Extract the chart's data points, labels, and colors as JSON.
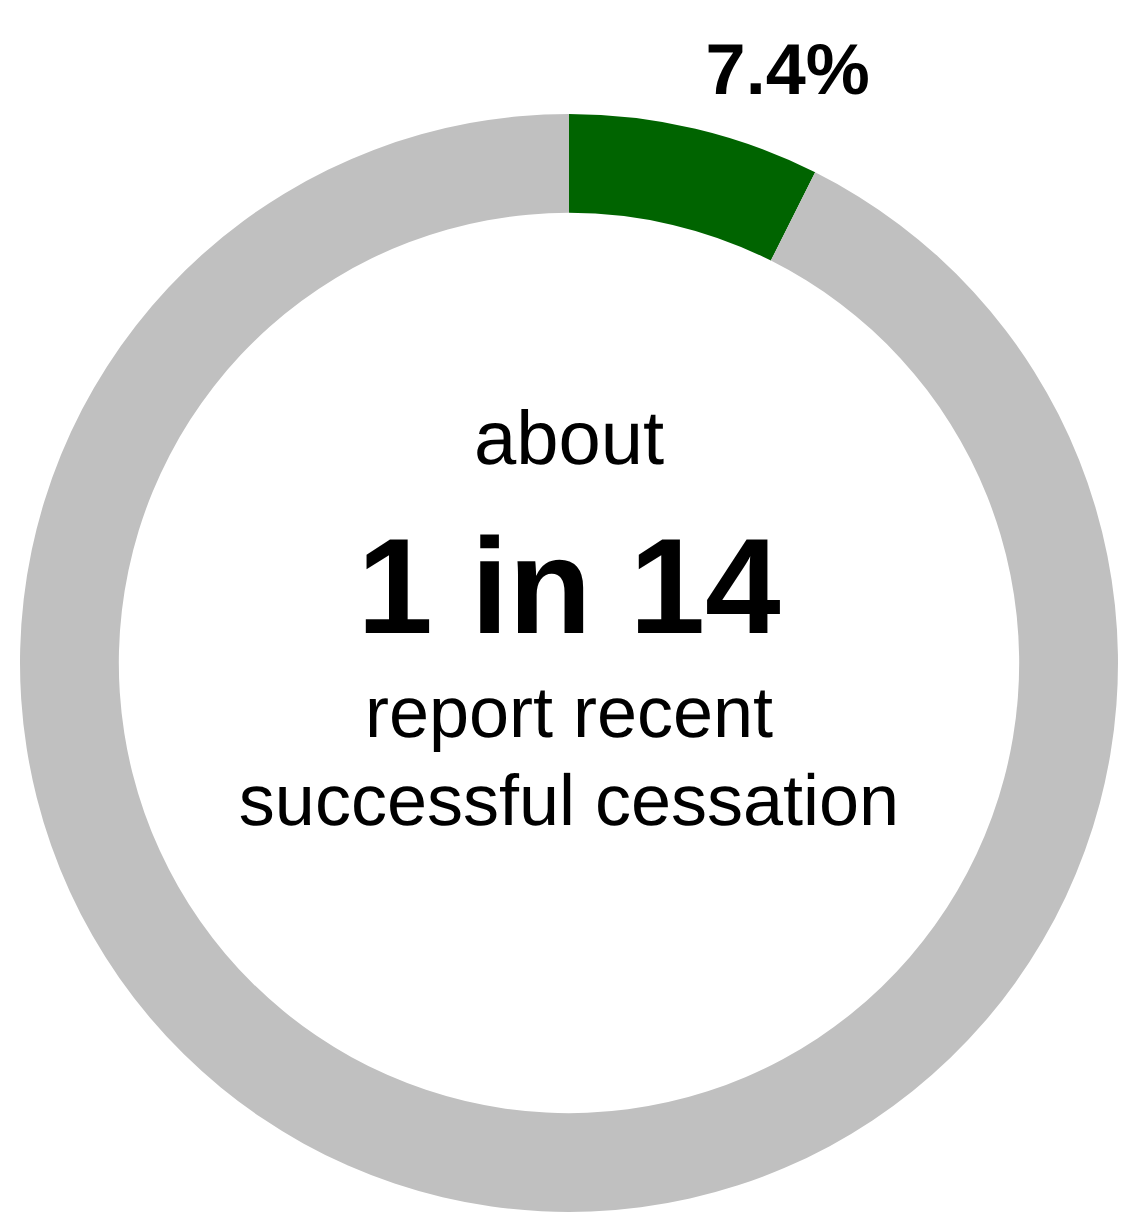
{
  "chart_data": {
    "type": "donut",
    "categories": [
      null,
      null
    ],
    "values": [
      7.4,
      92.6
    ],
    "colors": [
      "#006400",
      "#c0c0c0"
    ],
    "value_labels": [
      "7.4%",
      null
    ],
    "annotations": [
      "about",
      "1 in 14",
      "report recent",
      "successful cessation"
    ]
  }
}
